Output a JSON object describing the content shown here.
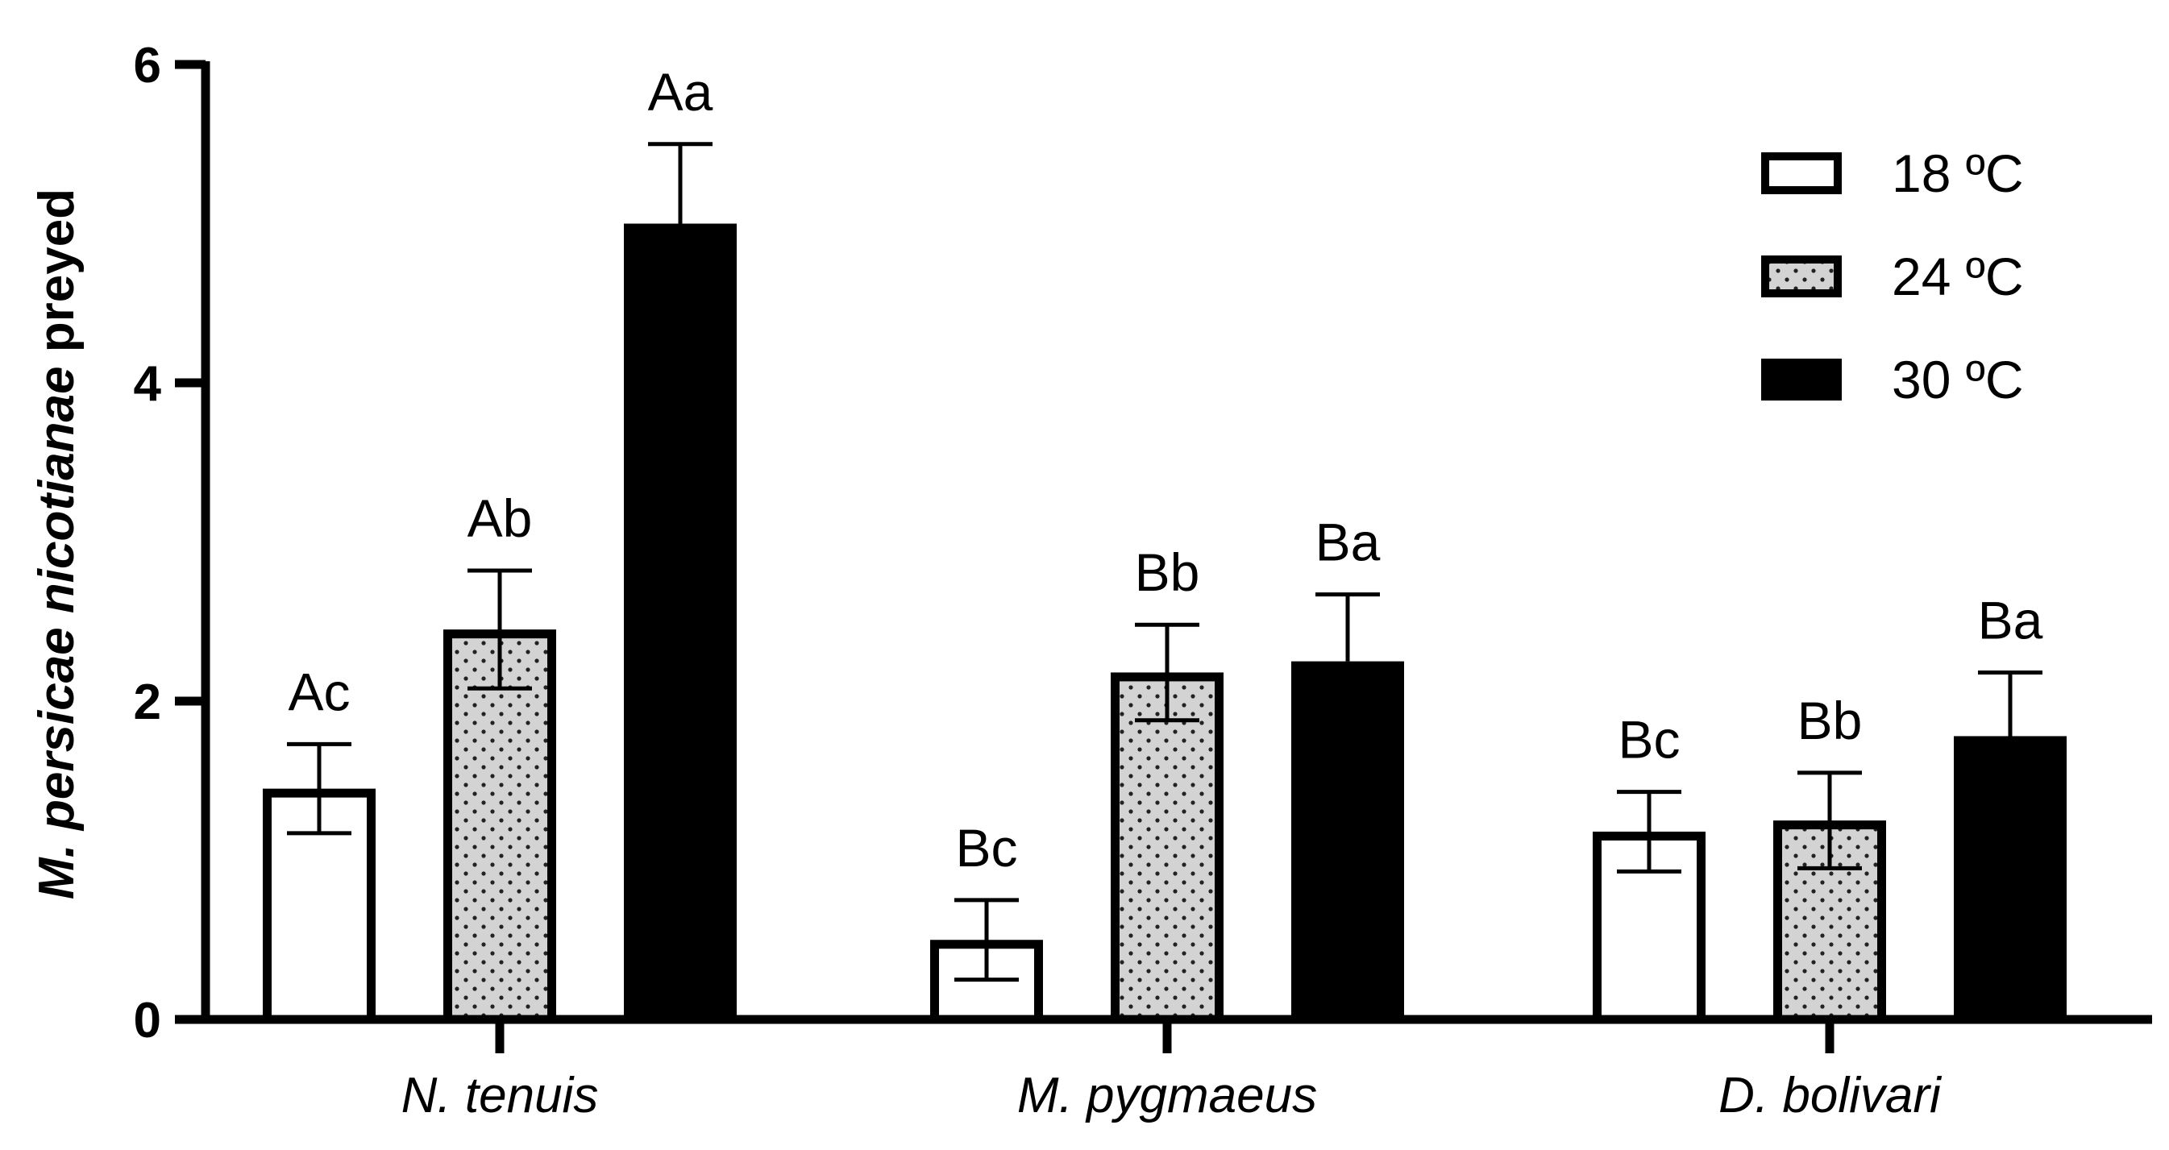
{
  "chart_data": {
    "type": "bar",
    "title": "",
    "ylabel_parts": [
      {
        "text": "M. persicae nicotianae",
        "italic": true
      },
      {
        "text": " preyed",
        "italic": false
      }
    ],
    "ylabel": "M. persicae nicotianae preyed",
    "xlabel": "",
    "ylim": [
      0,
      6
    ],
    "yticks": [
      "0",
      "2",
      "4",
      "6"
    ],
    "categories": [
      "N. tenuis",
      "M. pygmaeus",
      "D. bolivari"
    ],
    "series": [
      {
        "name": "18 ºC",
        "fill": "white",
        "values": [
          1.45,
          0.5,
          1.18
        ],
        "errors": [
          0.28,
          0.25,
          0.25
        ],
        "letters": [
          "Ac",
          "Bc",
          "Bc"
        ]
      },
      {
        "name": "24 ºC",
        "fill": "dotted",
        "values": [
          2.45,
          2.18,
          1.25
        ],
        "errors": [
          0.37,
          0.3,
          0.3
        ],
        "letters": [
          "Ab",
          "Bb",
          "Bb"
        ]
      },
      {
        "name": "30 ºC",
        "fill": "black",
        "values": [
          5.0,
          2.25,
          1.78
        ],
        "errors": [
          0.5,
          0.42,
          0.4
        ],
        "letters": [
          "Aa",
          "Ba",
          "Ba"
        ]
      }
    ],
    "legend_position": "top-right",
    "grid": false,
    "colors": {
      "axis": "#000000",
      "dot_fill": "#d3d3d3",
      "dark": "#000000",
      "light": "#ffffff"
    }
  }
}
